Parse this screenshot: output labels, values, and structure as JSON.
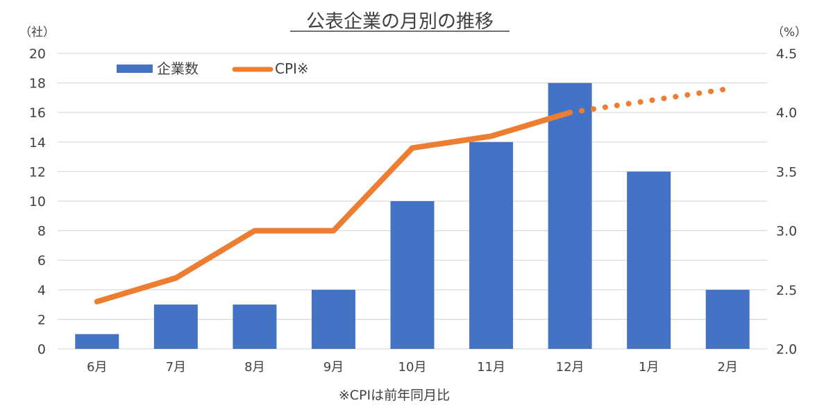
{
  "chart_data": {
    "type": "bar",
    "title": "公表企業の月別の推移",
    "y_unit_left": "（社）",
    "y_unit_right": "（%）",
    "categories": [
      "6月",
      "7月",
      "8月",
      "9月",
      "10月",
      "11月",
      "12月",
      "1月",
      "2月"
    ],
    "series": [
      {
        "name": "企業数",
        "type": "bar",
        "axis": "left",
        "color": "#4472C4",
        "values": [
          1,
          3,
          3,
          4,
          10,
          14,
          18,
          12,
          4
        ]
      },
      {
        "name": "CPI※",
        "type": "line",
        "axis": "right",
        "color": "#ED7D31",
        "values": [
          2.4,
          2.6,
          3.0,
          3.0,
          3.7,
          3.8,
          4.0,
          null,
          null
        ],
        "projection": {
          "style": "dotted",
          "x": [
            "12月",
            "1月",
            "2月"
          ],
          "values": [
            4.0,
            4.1,
            4.2
          ]
        }
      }
    ],
    "y_left": {
      "min": 0,
      "max": 20,
      "ticks": [
        "0",
        "2",
        "4",
        "6",
        "8",
        "10",
        "12",
        "14",
        "16",
        "18",
        "20"
      ]
    },
    "y_right": {
      "min": 2.0,
      "max": 4.5,
      "ticks": [
        "2.0",
        "2.5",
        "3.0",
        "3.5",
        "4.0",
        "4.5"
      ]
    },
    "grid": true,
    "legend_position": "top-left",
    "footnote": "※CPIは前年同月比"
  }
}
